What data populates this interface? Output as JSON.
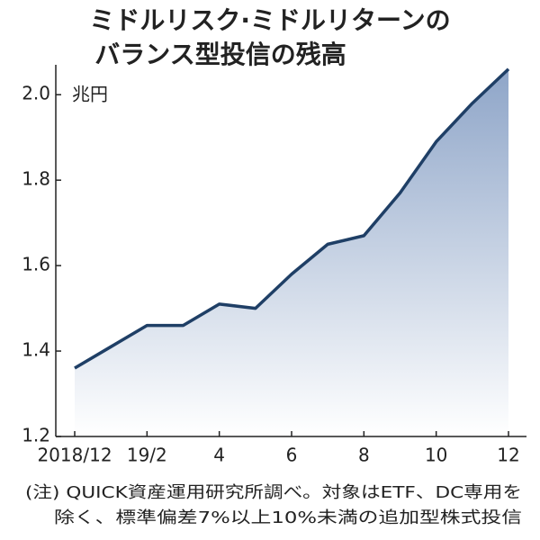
{
  "chart_data": {
    "type": "area",
    "title": [
      "ミドルリスク·ミドルリターンの",
      "バランス型投信の残高"
    ],
    "y_label": "兆円",
    "note": [
      "(注) QUICK資産運用研究所調べ。対象はETF、DC専用を",
      "除く、標準偏差7%以上10%未満の追加型株式投信"
    ],
    "categories": [
      "2018/12",
      null,
      "19/2",
      null,
      "4",
      null,
      "6",
      null,
      "8",
      null,
      "10",
      null,
      "12"
    ],
    "values": [
      1.36,
      1.41,
      1.46,
      1.46,
      1.51,
      1.5,
      1.58,
      1.65,
      1.67,
      1.77,
      1.89,
      1.98,
      2.06
    ],
    "color": "#1f3f66",
    "fill_color": "#8ea5c8",
    "ylim": [
      1.2,
      2.07
    ],
    "yticks": [
      1.2,
      1.4,
      1.6,
      1.8,
      {
        "value": 2,
        "label": "2.0"
      }
    ]
  }
}
